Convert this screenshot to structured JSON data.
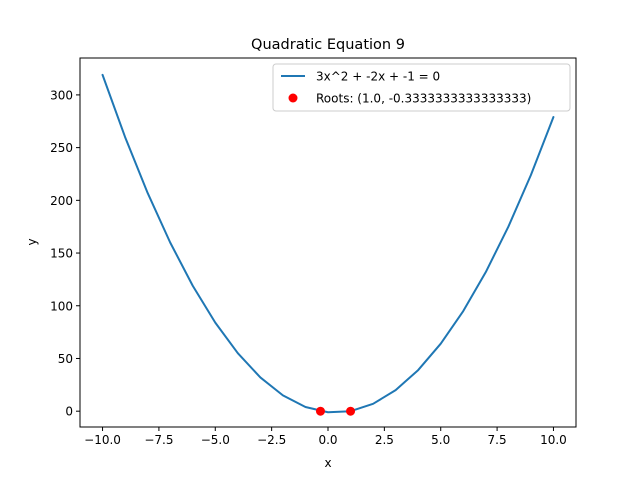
{
  "chart_data": {
    "type": "line",
    "title": "Quadratic Equation 9",
    "xlabel": "x",
    "ylabel": "y",
    "xlim": [
      -11,
      11
    ],
    "ylim": [
      -15,
      335
    ],
    "xticks": [
      -10,
      -7.5,
      -5,
      -2.5,
      0,
      2.5,
      5,
      7.5,
      10
    ],
    "xtick_labels": [
      "−10.0",
      "−7.5",
      "−5.0",
      "−2.5",
      "0.0",
      "2.5",
      "5.0",
      "7.5",
      "10.0"
    ],
    "yticks": [
      0,
      50,
      100,
      150,
      200,
      250,
      300
    ],
    "ytick_labels": [
      "0",
      "50",
      "100",
      "150",
      "200",
      "250",
      "300"
    ],
    "grid": false,
    "legend_position": "top-right",
    "series": [
      {
        "name": "3x^2 + -2x + -1 = 0",
        "kind": "line",
        "color": "#1f77b4",
        "x": [
          -10,
          -9,
          -8,
          -7,
          -6,
          -5,
          -4,
          -3,
          -2,
          -1,
          0,
          1,
          2,
          3,
          4,
          5,
          6,
          7,
          8,
          9,
          10
        ],
        "y": [
          319,
          260,
          207,
          160,
          119,
          84,
          55,
          32,
          15,
          4,
          -1,
          0,
          7,
          20,
          39,
          64,
          95,
          132,
          175,
          224,
          279
        ]
      },
      {
        "name": "Roots: (1.0, -0.3333333333333333)",
        "kind": "scatter",
        "color": "#ff0000",
        "x": [
          1.0,
          -0.3333333333333333
        ],
        "y": [
          0,
          0
        ]
      }
    ]
  }
}
